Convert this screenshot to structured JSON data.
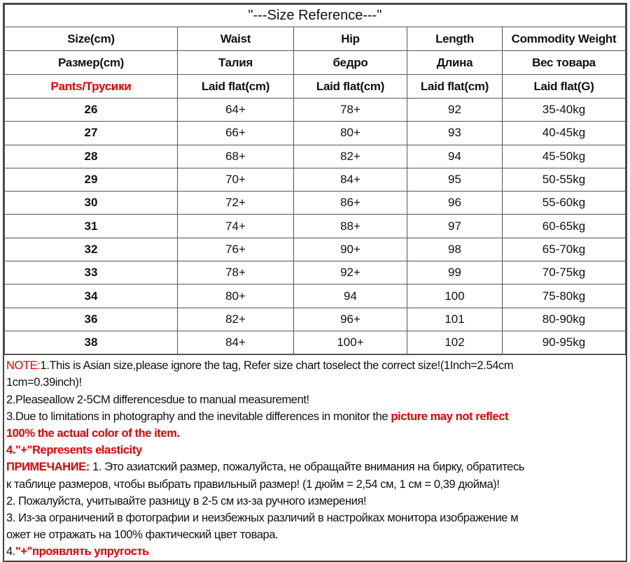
{
  "title": "\"---Size Reference---\"",
  "header_rows": [
    [
      "Size(cm)",
      "Waist",
      "Hip",
      "Length",
      "Commodity Weight"
    ],
    [
      "Размер(cm)",
      "Талия",
      "бедро",
      "Длина",
      "Вес товара"
    ],
    [
      "Pants/Трусики",
      "Laid flat(cm)",
      "Laid flat(cm)",
      "Laid flat(cm)",
      "Laid flat(G)"
    ]
  ],
  "rows": [
    [
      "26",
      "64+",
      "78+",
      "92",
      "35-40kg"
    ],
    [
      "27",
      "66+",
      "80+",
      "93",
      "40-45kg"
    ],
    [
      "28",
      "68+",
      "82+",
      "94",
      "45-50kg"
    ],
    [
      "29",
      "70+",
      "84+",
      "95",
      "50-55kg"
    ],
    [
      "30",
      "72+",
      "86+",
      "96",
      "55-60kg"
    ],
    [
      "31",
      "74+",
      "88+",
      "97",
      "60-65kg"
    ],
    [
      "32",
      "76+",
      "90+",
      "98",
      "65-70kg"
    ],
    [
      "33",
      "78+",
      "92+",
      "99",
      "70-75kg"
    ],
    [
      "34",
      "80+",
      "94",
      "100",
      "75-80kg"
    ],
    [
      "36",
      "82+",
      "96+",
      "101",
      "80-90kg"
    ],
    [
      "38",
      "84+",
      "100+",
      "102",
      "90-95kg"
    ]
  ],
  "notes": [
    [
      {
        "t": "NOTE:",
        "red": true
      },
      {
        "t": "1.This is Asian size,please ignore the tag, Refer size chart toselect the correct size!(1Inch=2.54cm"
      }
    ],
    [
      {
        "t": "1cm=0.39inch)!"
      }
    ],
    [
      {
        "t": "2.Pleaseallow 2-5CM differencesdue to manual measurement!"
      }
    ],
    [
      {
        "t": "3.Due to limitations in photography and the inevitable differences in monitor the "
      },
      {
        "t": "picture may not reflect",
        "red": true,
        "bold": true
      }
    ],
    [
      {
        "t": "100% the actual color of the item.",
        "red": true,
        "bold": true
      }
    ],
    [
      {
        "t": "4.\"+\"Represents elasticity",
        "red": true,
        "bold": true
      }
    ],
    [
      {
        "t": "ПРИМЕЧАНИЕ:",
        "red": true,
        "bold": true
      },
      {
        "t": " 1. Это азиатский размер, пожалуйста, не обращайте внимания на бирку, обратитесь"
      }
    ],
    [
      {
        "t": "к таблице размеров, чтобы выбрать правильный размер! (1 дюйм = 2,54 см, 1 см = 0,39 дюйма)!"
      }
    ],
    [
      {
        "t": "2. Пожалуйста, учитывайте разницу в 2-5 см из-за ручного измерения!"
      }
    ],
    [
      {
        "t": "3. Из-за ограничений в фотографии и неизбежных различий в настройках монитора изображение м"
      }
    ],
    [
      {
        "t": "ожет не отражать на 100% фактический цвет товара."
      }
    ],
    [
      {
        "t": "4."
      },
      {
        "t": "\"+\"проявлять упругость",
        "red": true,
        "bold": true
      }
    ]
  ],
  "colors": {
    "accent_red": "#e00000",
    "border": "#555555"
  }
}
